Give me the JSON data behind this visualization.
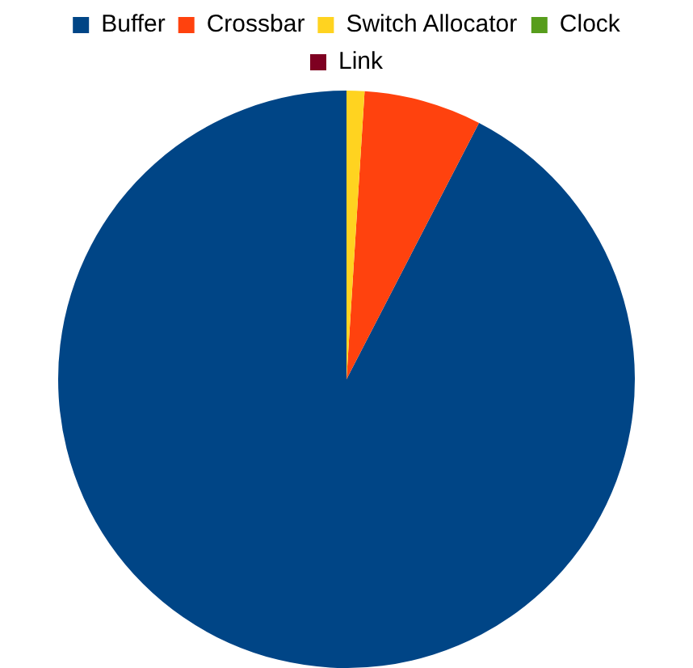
{
  "chart_data": {
    "type": "pie",
    "categories": [
      "Buffer",
      "Crossbar",
      "Switch Allocator",
      "Clock",
      "Link"
    ],
    "values": [
      92.4,
      6.6,
      1.0,
      0,
      0
    ],
    "colors": [
      "#004586",
      "#ff420e",
      "#ffd320",
      "#579d1c",
      "#7e0021"
    ],
    "legend": "top"
  }
}
